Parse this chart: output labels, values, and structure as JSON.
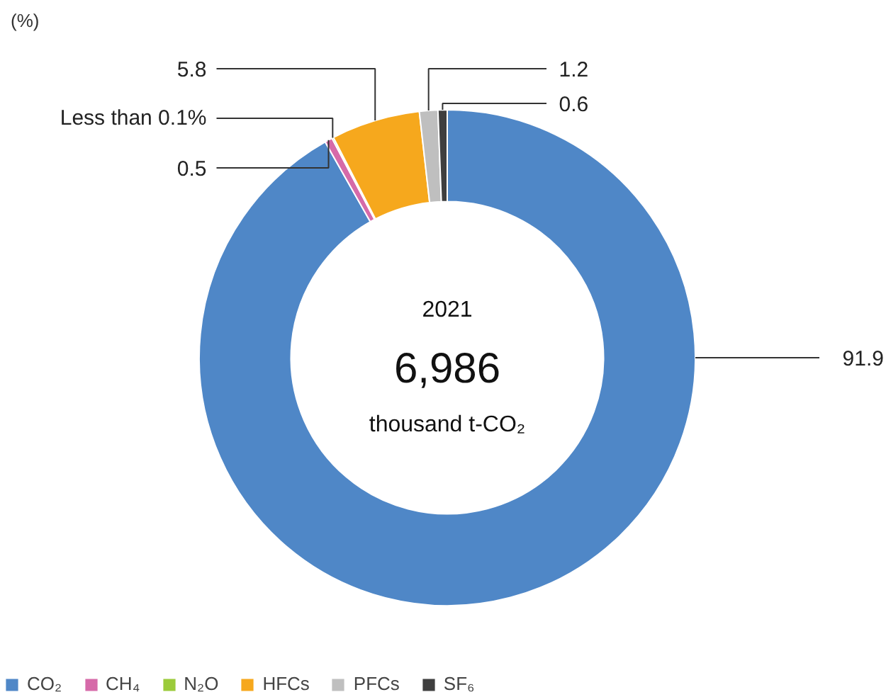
{
  "chart_data": {
    "type": "donut",
    "categories": [
      "CO₂",
      "CH₄",
      "N₂O",
      "HFCs",
      "PFCs",
      "SF₆"
    ],
    "values": [
      91.9,
      0.5,
      0.1,
      5.8,
      1.2,
      0.6
    ],
    "colors": [
      "#4f87c7",
      "#d66aa9",
      "#9bcb3b",
      "#f6a81d",
      "#bfbfbf",
      "#3f3f3f"
    ],
    "value_labels": [
      "91.9",
      "0.5",
      "Less than 0.1%",
      "5.8",
      "1.2",
      "0.6"
    ],
    "annotations": [
      "(%)",
      "2021",
      "6,986",
      "thousand t-CO₂"
    ],
    "legend": "bottom left"
  }
}
